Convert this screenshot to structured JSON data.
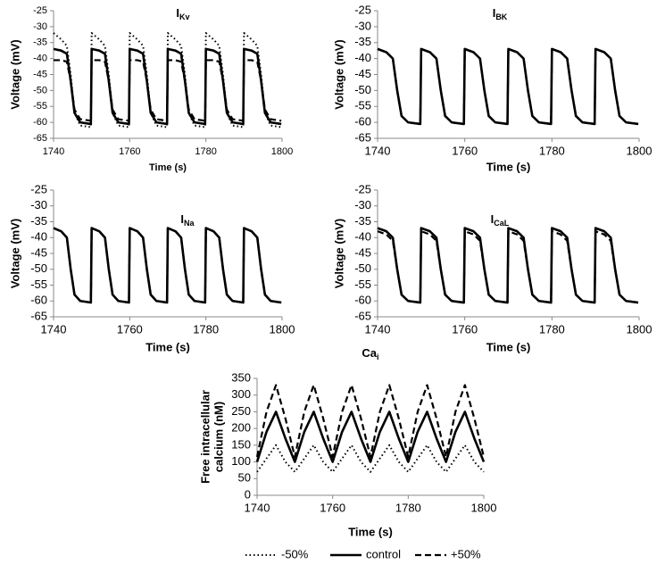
{
  "chart_data": [
    {
      "type": "line",
      "title": "I",
      "title_sub": "Kv",
      "xlabel": "Time (s)",
      "ylabel": [
        "Voltage (mV)"
      ],
      "x": [
        1740,
        1742,
        1743.5,
        1744.5,
        1745.5,
        1747,
        1749.8,
        1750,
        1752,
        1753.5,
        1754.5,
        1755.5,
        1757,
        1759.8,
        1760,
        1762,
        1763.5,
        1764.5,
        1765.5,
        1767,
        1769.8,
        1770,
        1772,
        1773.5,
        1774.5,
        1775.5,
        1777,
        1779.8,
        1780,
        1782,
        1783.5,
        1784.5,
        1785.5,
        1787,
        1789.8,
        1790,
        1792,
        1793.5,
        1794.5,
        1795.5,
        1797,
        1799.8
      ],
      "xlim": [
        1740,
        1800
      ],
      "xticks": [
        1740,
        1760,
        1780,
        1800
      ],
      "ylim": [
        -65,
        -25
      ],
      "yticks": [
        -65,
        -60,
        -55,
        -50,
        -45,
        -40,
        -35,
        -30,
        -25
      ],
      "series": [
        {
          "name": "-50%",
          "color": "#000000",
          "style": "dotted",
          "values": [
            -32,
            -34,
            -36,
            -45,
            -57,
            -61,
            -61.5,
            -32,
            -34,
            -36,
            -45,
            -57,
            -61,
            -61.5,
            -32,
            -34,
            -36,
            -45,
            -57,
            -61,
            -61.5,
            -32,
            -34,
            -36,
            -45,
            -57,
            -61,
            -61.5,
            -32,
            -34,
            -36,
            -45,
            -57,
            -61,
            -61.5,
            -32,
            -34,
            -36,
            -45,
            -57,
            -61,
            -61.5
          ]
        },
        {
          "name": "control",
          "color": "#000000",
          "style": "solid",
          "values": [
            -37,
            -37.5,
            -38.5,
            -47,
            -57,
            -60,
            -60.5,
            -37,
            -37.5,
            -38.5,
            -47,
            -57,
            -60,
            -60.5,
            -37,
            -37.5,
            -38.5,
            -47,
            -57,
            -60,
            -60.5,
            -37,
            -37.5,
            -38.5,
            -47,
            -57,
            -60,
            -60.5,
            -37,
            -37.5,
            -38.5,
            -47,
            -57,
            -60,
            -60.5,
            -37,
            -37.5,
            -38.5,
            -47,
            -57,
            -60,
            -60.5
          ]
        },
        {
          "name": "+50%",
          "color": "#000000",
          "style": "dashed",
          "values": [
            -40.5,
            -40.5,
            -41,
            -47,
            -56,
            -59,
            -59.5,
            -40.5,
            -40.5,
            -41,
            -47,
            -56,
            -59,
            -59.5,
            -40.5,
            -40.5,
            -41,
            -47,
            -56,
            -59,
            -59.5,
            -40.5,
            -40.5,
            -41,
            -47,
            -56,
            -59,
            -59.5,
            -40.5,
            -40.5,
            -41,
            -47,
            -56,
            -59,
            -59.5,
            -40.5,
            -40.5,
            -41,
            -47,
            -56,
            -59,
            -59.5
          ]
        }
      ]
    },
    {
      "type": "line",
      "title": "I",
      "title_sub": "BK",
      "xlabel": "Time (s)",
      "ylabel": [
        "Voltage (mV)"
      ],
      "x": [
        1740,
        1742,
        1743.5,
        1744.5,
        1745.5,
        1747,
        1749.8,
        1750,
        1752,
        1753.5,
        1754.5,
        1755.5,
        1757,
        1759.8,
        1760,
        1762,
        1763.5,
        1764.5,
        1765.5,
        1767,
        1769.8,
        1770,
        1772,
        1773.5,
        1774.5,
        1775.5,
        1777,
        1779.8,
        1780,
        1782,
        1783.5,
        1784.5,
        1785.5,
        1787,
        1789.8,
        1790,
        1792,
        1793.5,
        1794.5,
        1795.5,
        1797,
        1799.8
      ],
      "xlim": [
        1740,
        1800
      ],
      "xticks": [
        1740,
        1760,
        1780,
        1800
      ],
      "ylim": [
        -65,
        -25
      ],
      "yticks": [
        -65,
        -60,
        -55,
        -50,
        -45,
        -40,
        -35,
        -30,
        -25
      ],
      "series": [
        {
          "name": "-50%",
          "color": "#000000",
          "style": "dotted",
          "values": [
            -37,
            -38,
            -40,
            -50,
            -58,
            -60,
            -60.5,
            -37,
            -38,
            -40,
            -50,
            -58,
            -60,
            -60.5,
            -37,
            -38,
            -40,
            -50,
            -58,
            -60,
            -60.5,
            -37,
            -38,
            -40,
            -50,
            -58,
            -60,
            -60.5,
            -37,
            -38,
            -40,
            -50,
            -58,
            -60,
            -60.5,
            -37,
            -38,
            -40,
            -50,
            -58,
            -60,
            -60.5
          ]
        },
        {
          "name": "control",
          "color": "#000000",
          "style": "solid",
          "values": [
            -37,
            -38,
            -40,
            -50,
            -58,
            -60,
            -60.5,
            -37,
            -38,
            -40,
            -50,
            -58,
            -60,
            -60.5,
            -37,
            -38,
            -40,
            -50,
            -58,
            -60,
            -60.5,
            -37,
            -38,
            -40,
            -50,
            -58,
            -60,
            -60.5,
            -37,
            -38,
            -40,
            -50,
            -58,
            -60,
            -60.5,
            -37,
            -38,
            -40,
            -50,
            -58,
            -60,
            -60.5
          ]
        },
        {
          "name": "+50%",
          "color": "#000000",
          "style": "dashed",
          "values": [
            -37,
            -38,
            -40,
            -50,
            -58,
            -60,
            -60.5,
            -37,
            -38,
            -40,
            -50,
            -58,
            -60,
            -60.5,
            -37,
            -38,
            -40,
            -50,
            -58,
            -60,
            -60.5,
            -37,
            -38,
            -40,
            -50,
            -58,
            -60,
            -60.5,
            -37,
            -38,
            -40,
            -50,
            -58,
            -60,
            -60.5,
            -37,
            -38,
            -40,
            -50,
            -58,
            -60,
            -60.5
          ]
        }
      ]
    },
    {
      "type": "line",
      "title": "I",
      "title_sub": "Na",
      "xlabel": "Time (s)",
      "ylabel": [
        "Voltage (mV)"
      ],
      "x": [
        1740,
        1742,
        1743.5,
        1744.5,
        1745.5,
        1747,
        1749.8,
        1750,
        1752,
        1753.5,
        1754.5,
        1755.5,
        1757,
        1759.8,
        1760,
        1762,
        1763.5,
        1764.5,
        1765.5,
        1767,
        1769.8,
        1770,
        1772,
        1773.5,
        1774.5,
        1775.5,
        1777,
        1779.8,
        1780,
        1782,
        1783.5,
        1784.5,
        1785.5,
        1787,
        1789.8,
        1790,
        1792,
        1793.5,
        1794.5,
        1795.5,
        1797,
        1799.8
      ],
      "xlim": [
        1740,
        1800
      ],
      "xticks": [
        1740,
        1760,
        1780,
        1800
      ],
      "ylim": [
        -65,
        -25
      ],
      "yticks": [
        -65,
        -60,
        -55,
        -50,
        -45,
        -40,
        -35,
        -30,
        -25
      ],
      "series": [
        {
          "name": "-50%",
          "color": "#000000",
          "style": "dotted",
          "values": [
            -37,
            -38,
            -40,
            -50,
            -58,
            -60,
            -60.5,
            -37,
            -38,
            -40,
            -50,
            -58,
            -60,
            -60.5,
            -37,
            -38,
            -40,
            -50,
            -58,
            -60,
            -60.5,
            -37,
            -38,
            -40,
            -50,
            -58,
            -60,
            -60.5,
            -37,
            -38,
            -40,
            -50,
            -58,
            -60,
            -60.5,
            -37,
            -38,
            -40,
            -50,
            -58,
            -60,
            -60.5
          ]
        },
        {
          "name": "control",
          "color": "#000000",
          "style": "solid",
          "values": [
            -37,
            -38,
            -40,
            -50,
            -58,
            -60,
            -60.5,
            -37,
            -38,
            -40,
            -50,
            -58,
            -60,
            -60.5,
            -37,
            -38,
            -40,
            -50,
            -58,
            -60,
            -60.5,
            -37,
            -38,
            -40,
            -50,
            -58,
            -60,
            -60.5,
            -37,
            -38,
            -40,
            -50,
            -58,
            -60,
            -60.5,
            -37,
            -38,
            -40,
            -50,
            -58,
            -60,
            -60.5
          ]
        },
        {
          "name": "+50%",
          "color": "#000000",
          "style": "dashed",
          "values": [
            -37,
            -38,
            -40,
            -50,
            -58,
            -60,
            -60.5,
            -37,
            -38,
            -40,
            -50,
            -58,
            -60,
            -60.5,
            -37,
            -38,
            -40,
            -50,
            -58,
            -60,
            -60.5,
            -37,
            -38,
            -40,
            -50,
            -58,
            -60,
            -60.5,
            -37,
            -38,
            -40,
            -50,
            -58,
            -60,
            -60.5,
            -37,
            -38,
            -40,
            -50,
            -58,
            -60,
            -60.5
          ]
        }
      ]
    },
    {
      "type": "line",
      "title": "I",
      "title_sub": "CaL",
      "xlabel": "Time (s)",
      "ylabel": [
        "Voltage (mV)"
      ],
      "x": [
        1740,
        1742,
        1743.5,
        1744.5,
        1745.5,
        1747,
        1749.8,
        1750,
        1752,
        1753.5,
        1754.5,
        1755.5,
        1757,
        1759.8,
        1760,
        1762,
        1763.5,
        1764.5,
        1765.5,
        1767,
        1769.8,
        1770,
        1772,
        1773.5,
        1774.5,
        1775.5,
        1777,
        1779.8,
        1780,
        1782,
        1783.5,
        1784.5,
        1785.5,
        1787,
        1789.8,
        1790,
        1792,
        1793.5,
        1794.5,
        1795.5,
        1797,
        1799.8
      ],
      "xlim": [
        1740,
        1800
      ],
      "xticks": [
        1740,
        1760,
        1780,
        1800
      ],
      "ylim": [
        -65,
        -25
      ],
      "yticks": [
        -65,
        -60,
        -55,
        -50,
        -45,
        -40,
        -35,
        -30,
        -25
      ],
      "series": [
        {
          "name": "-50%",
          "color": "#000000",
          "style": "dotted",
          "values": [
            -37,
            -38,
            -40,
            -50,
            -58,
            -60,
            -60.5,
            -37,
            -38,
            -40,
            -50,
            -58,
            -60,
            -60.5,
            -37,
            -38,
            -40,
            -50,
            -58,
            -60,
            -60.5,
            -37,
            -38,
            -40,
            -50,
            -58,
            -60,
            -60.5,
            -37,
            -38,
            -40,
            -50,
            -58,
            -60,
            -60.5,
            -37,
            -38,
            -40,
            -50,
            -58,
            -60,
            -60.5
          ]
        },
        {
          "name": "control",
          "color": "#000000",
          "style": "solid",
          "values": [
            -37,
            -38,
            -40,
            -50,
            -58,
            -60,
            -60.5,
            -37,
            -38,
            -40,
            -50,
            -58,
            -60,
            -60.5,
            -37,
            -38,
            -40,
            -50,
            -58,
            -60,
            -60.5,
            -37,
            -38,
            -40,
            -50,
            -58,
            -60,
            -60.5,
            -37,
            -38,
            -40,
            -50,
            -58,
            -60,
            -60.5,
            -37,
            -38,
            -40,
            -50,
            -58,
            -60,
            -60.5
          ]
        },
        {
          "name": "+50%",
          "color": "#000000",
          "style": "dashed",
          "values": [
            -38,
            -39,
            -41,
            -50,
            -58,
            -60,
            -60.5,
            -38,
            -39,
            -41,
            -50,
            -58,
            -60,
            -60.5,
            -38,
            -39,
            -41,
            -50,
            -58,
            -60,
            -60.5,
            -38,
            -39,
            -41,
            -50,
            -58,
            -60,
            -60.5,
            -38,
            -39,
            -41,
            -50,
            -58,
            -60,
            -60.5,
            -38,
            -39,
            -41,
            -50,
            -58,
            -60,
            -60.5
          ]
        }
      ]
    },
    {
      "type": "line",
      "title": "Ca",
      "title_sub": "i",
      "xlabel": "Time (s)",
      "ylabel": [
        "Free intracellular",
        "calcium (nM)"
      ],
      "x": [
        1740,
        1742.5,
        1745,
        1747.5,
        1750,
        1752.5,
        1755,
        1757.5,
        1760,
        1762.5,
        1765,
        1767.5,
        1770,
        1772.5,
        1775,
        1777.5,
        1780,
        1782.5,
        1785,
        1787.5,
        1790,
        1792.5,
        1795,
        1797.5,
        1800
      ],
      "xlim": [
        1740,
        1800
      ],
      "xticks": [
        1740,
        1760,
        1780,
        1800
      ],
      "ylim": [
        0,
        350
      ],
      "yticks": [
        0,
        50,
        100,
        150,
        200,
        250,
        300,
        350
      ],
      "series": [
        {
          "name": "-50%",
          "color": "#000000",
          "style": "dotted",
          "values": [
            70,
            110,
            150,
            100,
            70,
            110,
            150,
            100,
            70,
            110,
            150,
            100,
            70,
            110,
            150,
            100,
            70,
            110,
            150,
            100,
            70,
            110,
            150,
            100,
            70
          ]
        },
        {
          "name": "control",
          "color": "#000000",
          "style": "solid",
          "values": [
            100,
            190,
            250,
            170,
            100,
            190,
            250,
            170,
            100,
            190,
            250,
            170,
            100,
            190,
            250,
            170,
            100,
            190,
            250,
            170,
            100,
            190,
            250,
            170,
            100
          ]
        },
        {
          "name": "+50%",
          "color": "#000000",
          "style": "dashed",
          "values": [
            115,
            250,
            330,
            230,
            115,
            250,
            330,
            230,
            115,
            250,
            330,
            230,
            115,
            250,
            330,
            230,
            115,
            250,
            330,
            230,
            115,
            250,
            330,
            230,
            115
          ]
        }
      ]
    }
  ]
}
